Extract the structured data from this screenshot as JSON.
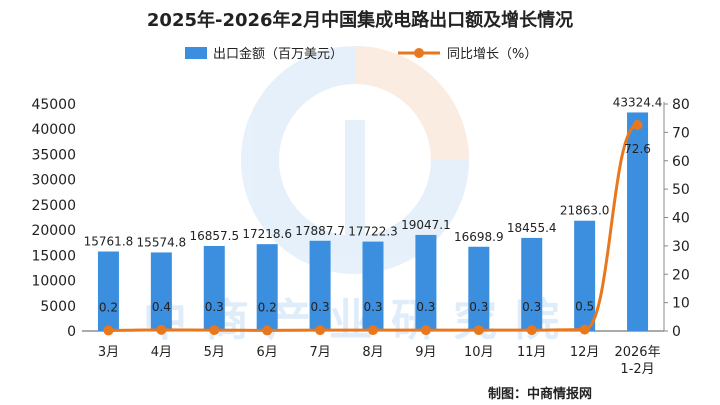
{
  "chart_data": {
    "type": "bar",
    "title": "2025年-2026年2月中国集成电路出口额及增长情况",
    "categories": [
      "3月",
      "4月",
      "5月",
      "6月",
      "7月",
      "8月",
      "9月",
      "10月",
      "11月",
      "12月",
      "2026年1-2月"
    ],
    "series": [
      {
        "name": "出口金额（百万美元）",
        "type": "bar",
        "axis": "left",
        "color": "#3c8fde",
        "values": [
          15761.8,
          15574.8,
          16857.5,
          17218.6,
          17887.7,
          17722.3,
          19047.1,
          16698.9,
          18455.4,
          21863.0,
          43324.4
        ],
        "labels": [
          "15761.8",
          "15574.8",
          "16857.5",
          "17218.6",
          "17887.7",
          "17722.3",
          "19047.1",
          "16698.9",
          "18455.4",
          "21863.0",
          "43324.4"
        ]
      },
      {
        "name": "同比增长（%）",
        "type": "line",
        "axis": "right",
        "color": "#e8771e",
        "values": [
          0.2,
          0.4,
          0.3,
          0.2,
          0.3,
          0.3,
          0.3,
          0.3,
          0.3,
          0.5,
          72.6
        ],
        "labels": [
          "0.2",
          "0.4",
          "0.3",
          "0.2",
          "0.3",
          "0.3",
          "0.3",
          "0.3",
          "0.3",
          "0.5",
          "72.6"
        ]
      }
    ],
    "y_left": {
      "range": [
        0,
        45000
      ],
      "ticks": [
        "0",
        "5000",
        "10000",
        "15000",
        "20000",
        "25000",
        "30000",
        "35000",
        "40000",
        "45000"
      ]
    },
    "y_right": {
      "range": [
        0,
        80
      ],
      "ticks": [
        "0",
        "10",
        "20",
        "30",
        "40",
        "50",
        "60",
        "70",
        "80"
      ]
    },
    "legend_position": "top-center",
    "grid": false
  },
  "credit": "制图：中商情报网",
  "watermark": "中商产业研究院"
}
